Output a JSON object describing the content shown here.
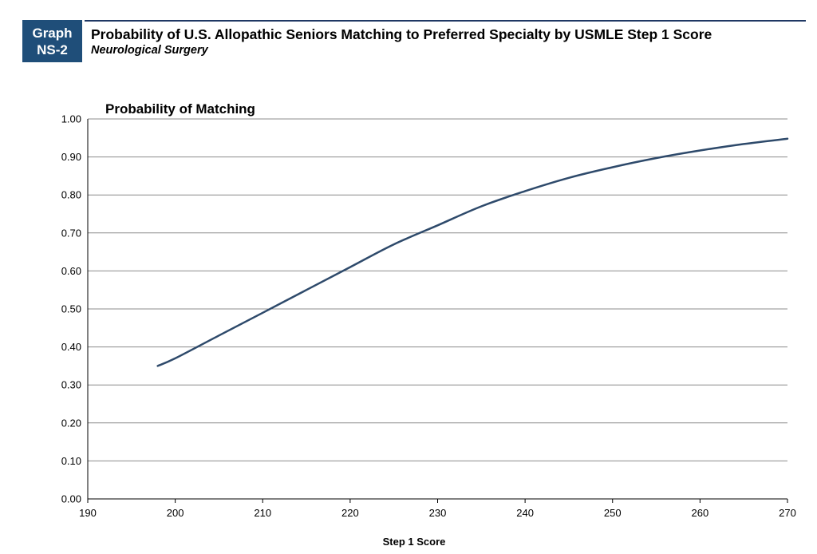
{
  "header": {
    "badge_line1": "Graph",
    "badge_line2": "NS-2",
    "title": "Probability of U.S. Allopathic Seniors Matching to Preferred Specialty by USMLE Step 1 Score",
    "subtitle": "Neurological Surgery",
    "accent_color": "#1f4e79"
  },
  "chart_data": {
    "type": "line",
    "title": "Probability of Matching",
    "xlabel": "Step 1 Score",
    "ylabel": "",
    "xlim": [
      190,
      270
    ],
    "ylim": [
      0,
      1
    ],
    "x_ticks": [
      "190",
      "200",
      "210",
      "220",
      "230",
      "240",
      "250",
      "260",
      "270"
    ],
    "y_ticks": [
      "0.00",
      "0.10",
      "0.20",
      "0.30",
      "0.40",
      "0.50",
      "0.60",
      "0.70",
      "0.80",
      "0.90",
      "1.00"
    ],
    "grid": true,
    "legend": "none",
    "line_color": "#2e4a6b",
    "series": [
      {
        "x": [
          198,
          200,
          205,
          210,
          215,
          220,
          225,
          230,
          235,
          240,
          245,
          250,
          255,
          260,
          265,
          270
        ],
        "values": [
          0.35,
          0.37,
          0.43,
          0.49,
          0.55,
          0.61,
          0.67,
          0.72,
          0.77,
          0.81,
          0.845,
          0.873,
          0.897,
          0.917,
          0.934,
          0.948
        ]
      }
    ]
  }
}
